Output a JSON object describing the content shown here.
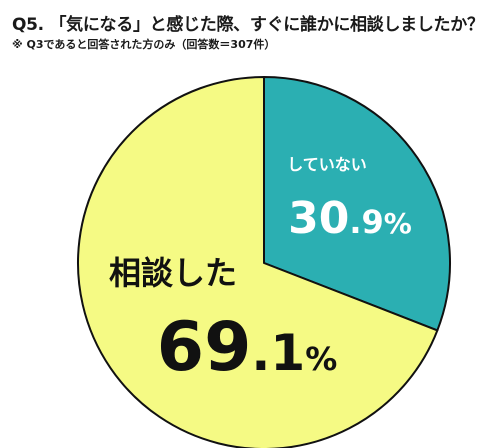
{
  "header": {
    "title": "Q5. 「気になる」と感じた際、すぐに誰かに相談しましたか？",
    "subtitle": "※ Q3であると回答された方のみ（回答数＝307件）"
  },
  "chart_data": {
    "type": "pie",
    "categories": [
      "していない",
      "相談した"
    ],
    "values": [
      30.9,
      69.1
    ],
    "value_labels": [
      {
        "int": "30",
        "dec": ".9",
        "unit": "%"
      },
      {
        "int": "69",
        "dec": ".1",
        "unit": "%"
      }
    ],
    "colors": [
      "#2bafb2",
      "#f5fa84"
    ],
    "stroke": "#111111",
    "start": "12 o'clock",
    "direction": "clockwise",
    "legend": "none"
  }
}
